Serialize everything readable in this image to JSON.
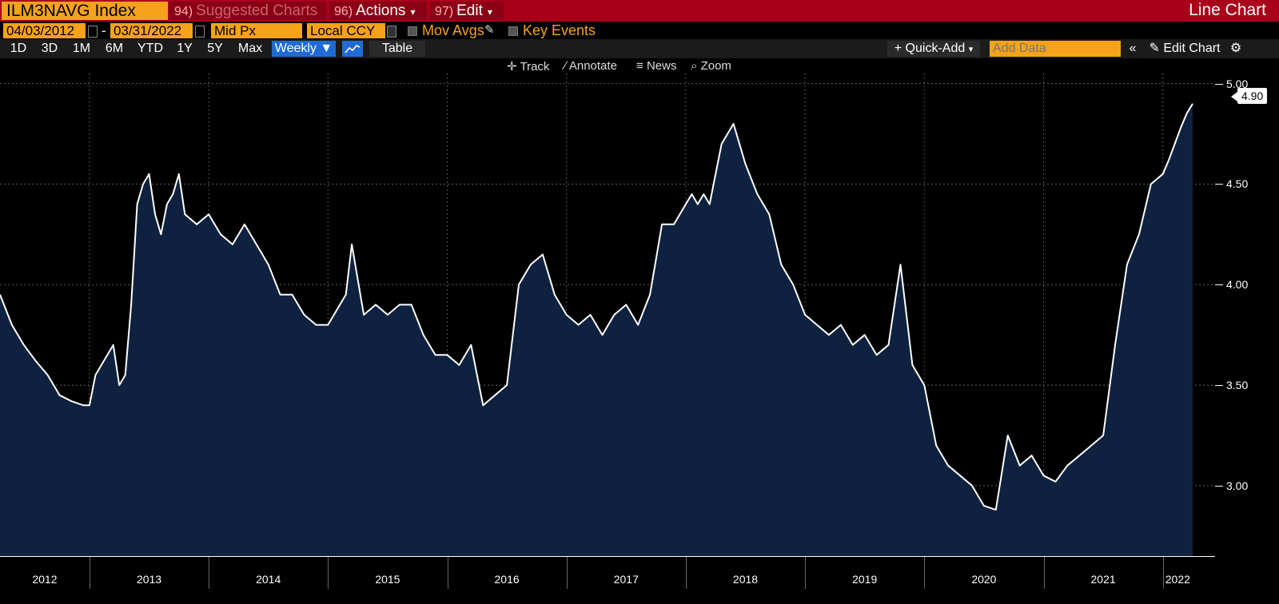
{
  "header": {
    "ticker": "ILM3NAVG Index",
    "menus": [
      {
        "num": "94)",
        "label": "Suggested Charts",
        "dim": true
      },
      {
        "num": "96)",
        "label": "Actions",
        "dim": false
      },
      {
        "num": "97)",
        "label": "Edit",
        "dim": false
      }
    ],
    "chart_type": "Line Chart"
  },
  "params": {
    "start_date": "04/03/2012",
    "end_date": "03/31/2022",
    "price_field": "Mid Px",
    "currency": "Local CCY",
    "mov_avgs": "Mov Avgs",
    "key_events": "Key Events"
  },
  "ranges": [
    "1D",
    "3D",
    "1M",
    "6M",
    "YTD",
    "1Y",
    "5Y",
    "Max"
  ],
  "period": "Weekly ▼",
  "table_label": "Table",
  "quick_add": "+ Quick-Add",
  "add_data_placeholder": "Add Data",
  "edit_chart": "Edit Chart",
  "tools": [
    "Track",
    "Annotate",
    "News",
    "Zoom"
  ],
  "current_value": "4.90",
  "chart_data": {
    "type": "line",
    "title": "",
    "xlabel": "",
    "ylabel": "",
    "ylim": [
      2.65,
      5.05
    ],
    "yticks": [
      "3.00",
      "3.50",
      "4.00",
      "4.50",
      "5.00"
    ],
    "xticks": [
      "2012",
      "2013",
      "2014",
      "2015",
      "2016",
      "2017",
      "2018",
      "2019",
      "2020",
      "2021",
      "2022"
    ],
    "x_start": 2012.25,
    "x_end": 2022.25,
    "grid": true,
    "series": [
      {
        "name": "",
        "x": [
          2012.25,
          2012.35,
          2012.45,
          2012.55,
          2012.65,
          2012.75,
          2012.85,
          2012.95,
          2013.0,
          2013.05,
          2013.1,
          2013.15,
          2013.2,
          2013.25,
          2013.3,
          2013.35,
          2013.4,
          2013.45,
          2013.5,
          2013.55,
          2013.6,
          2013.65,
          2013.7,
          2013.75,
          2013.8,
          2013.9,
          2014.0,
          2014.1,
          2014.2,
          2014.3,
          2014.4,
          2014.5,
          2014.6,
          2014.7,
          2014.8,
          2014.9,
          2015.0,
          2015.1,
          2015.15,
          2015.2,
          2015.3,
          2015.4,
          2015.5,
          2015.6,
          2015.7,
          2015.8,
          2015.9,
          2016.0,
          2016.1,
          2016.2,
          2016.3,
          2016.4,
          2016.5,
          2016.6,
          2016.7,
          2016.8,
          2016.9,
          2017.0,
          2017.1,
          2017.2,
          2017.3,
          2017.4,
          2017.5,
          2017.6,
          2017.7,
          2017.8,
          2017.9,
          2018.0,
          2018.05,
          2018.1,
          2018.15,
          2018.2,
          2018.3,
          2018.4,
          2018.5,
          2018.6,
          2018.7,
          2018.8,
          2018.9,
          2019.0,
          2019.1,
          2019.2,
          2019.3,
          2019.4,
          2019.5,
          2019.6,
          2019.7,
          2019.8,
          2019.9,
          2020.0,
          2020.1,
          2020.2,
          2020.3,
          2020.4,
          2020.5,
          2020.6,
          2020.7,
          2020.8,
          2020.9,
          2021.0,
          2021.1,
          2021.2,
          2021.3,
          2021.4,
          2021.5,
          2021.6,
          2021.7,
          2021.8,
          2021.9,
          2022.0,
          2022.05,
          2022.1,
          2022.15,
          2022.2,
          2022.25
        ],
        "values": [
          3.95,
          3.8,
          3.7,
          3.62,
          3.55,
          3.45,
          3.42,
          3.4,
          3.4,
          3.55,
          3.6,
          3.65,
          3.7,
          3.5,
          3.55,
          3.9,
          4.4,
          4.5,
          4.55,
          4.35,
          4.25,
          4.4,
          4.45,
          4.55,
          4.35,
          4.3,
          4.35,
          4.25,
          4.2,
          4.3,
          4.2,
          4.1,
          3.95,
          3.95,
          3.85,
          3.8,
          3.8,
          3.9,
          3.95,
          4.2,
          3.85,
          3.9,
          3.85,
          3.9,
          3.9,
          3.75,
          3.65,
          3.65,
          3.6,
          3.7,
          3.4,
          3.45,
          3.5,
          4.0,
          4.1,
          4.15,
          3.95,
          3.85,
          3.8,
          3.85,
          3.75,
          3.85,
          3.9,
          3.8,
          3.95,
          4.3,
          4.3,
          4.4,
          4.45,
          4.4,
          4.45,
          4.4,
          4.7,
          4.8,
          4.6,
          4.45,
          4.35,
          4.1,
          4.0,
          3.85,
          3.8,
          3.75,
          3.8,
          3.7,
          3.75,
          3.65,
          3.7,
          4.1,
          3.6,
          3.5,
          3.2,
          3.1,
          3.05,
          3.0,
          2.9,
          2.88,
          3.25,
          3.1,
          3.15,
          3.05,
          3.02,
          3.1,
          3.15,
          3.2,
          3.25,
          3.7,
          4.1,
          4.25,
          4.5,
          4.55,
          4.62,
          4.7,
          4.78,
          4.85,
          4.9
        ]
      }
    ]
  }
}
